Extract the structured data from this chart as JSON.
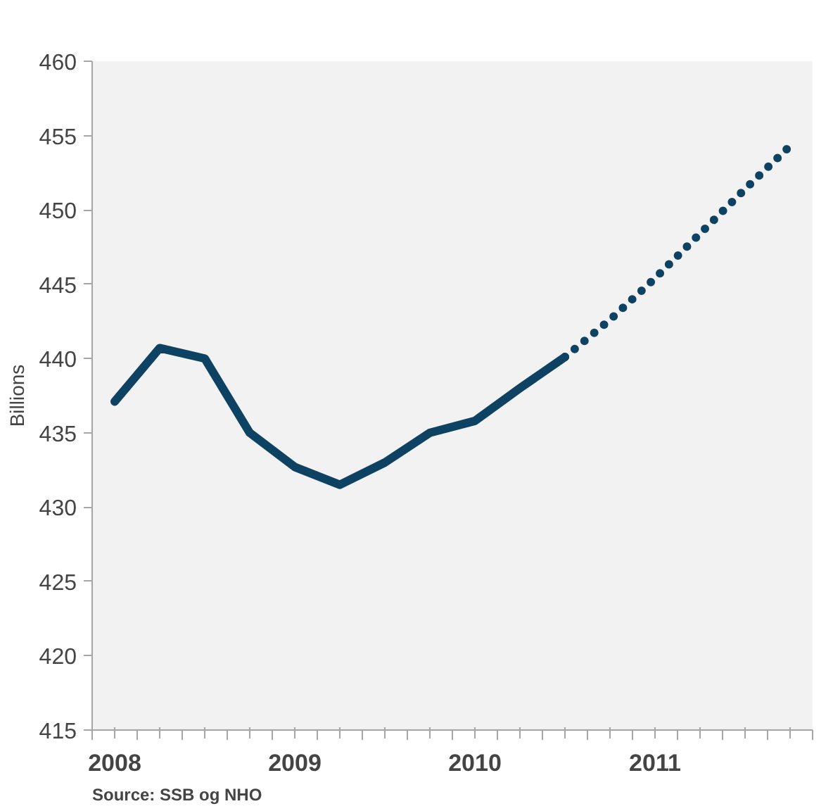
{
  "chart_data": {
    "type": "line",
    "ylabel": "Billions",
    "annotations": [
      "Source: SSB og NHO"
    ],
    "categories": [
      "2008",
      null,
      null,
      null,
      "2009",
      null,
      null,
      null,
      "2010",
      null,
      null,
      null,
      "2011",
      null,
      null,
      null
    ],
    "series": [
      {
        "color": "#0e4263",
        "line_style": "solid",
        "values": [
          437.1,
          440.7,
          440.0,
          435.0,
          432.7,
          431.5,
          433.0,
          435.0,
          435.8,
          438.0,
          440.1,
          null,
          null,
          null,
          null,
          null
        ]
      },
      {
        "color": "#0e4263",
        "line_style": "dotted",
        "values": [
          null,
          null,
          null,
          null,
          null,
          null,
          null,
          null,
          null,
          null,
          440.1,
          442.6,
          445.4,
          448.4,
          451.4,
          454.3
        ]
      }
    ],
    "ylim": [
      415,
      460
    ],
    "yticks": [
      415,
      420,
      425,
      430,
      435,
      440,
      445,
      450,
      455,
      460
    ],
    "grid": false,
    "marker": "none"
  }
}
